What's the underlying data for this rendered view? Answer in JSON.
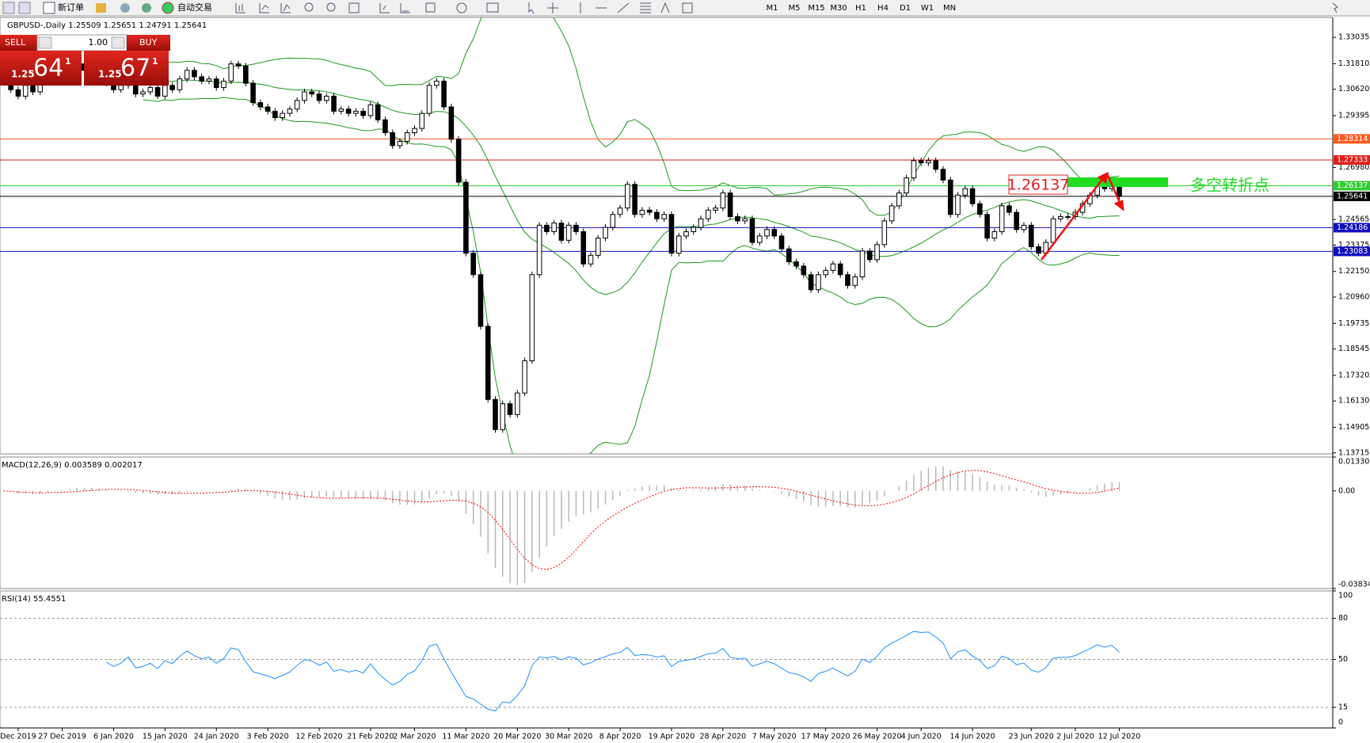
{
  "toolbar": {
    "new_order": "新订单",
    "auto_trading": "自动交易",
    "timeframes": [
      "M1",
      "M5",
      "M15",
      "M30",
      "H1",
      "H4",
      "D1",
      "W1",
      "MN"
    ]
  },
  "trade_panel": {
    "sell": "SELL",
    "buy": "BUY",
    "lots": "1.00",
    "sell_price": {
      "big": "1.25",
      "pips": "64",
      "fraction": "1"
    },
    "buy_price": {
      "big": "1.25",
      "pips": "67",
      "fraction": "1"
    }
  },
  "chart_data": {
    "type": "candlestick",
    "title": "GBPUSD-,Daily 1.25509 1.25651 1.24791 1.25641",
    "categories": [
      null,
      null,
      "Dec 2019",
      null,
      null,
      null,
      null,
      null,
      "27 Dec 2019",
      null,
      null,
      null,
      null,
      null,
      null,
      "6 Jan 2020",
      null,
      null,
      null,
      null,
      null,
      null,
      "15 Jan 2020",
      null,
      null,
      null,
      null,
      null,
      null,
      "24 Jan 2020",
      null,
      null,
      null,
      null,
      null,
      null,
      "3 Feb 2020",
      null,
      null,
      null,
      null,
      null,
      null,
      "12 Feb 2020",
      null,
      null,
      null,
      null,
      null,
      null,
      "21 Feb 2020",
      null,
      null,
      null,
      null,
      null,
      "2 Mar 2020",
      null,
      null,
      null,
      null,
      null,
      null,
      "11 Mar 2020",
      null,
      null,
      null,
      null,
      null,
      null,
      "20 Mar 2020",
      null,
      null,
      null,
      null,
      null,
      null,
      "30 Mar 2020",
      null,
      null,
      null,
      null,
      null,
      null,
      "8 Apr 2020",
      null,
      null,
      null,
      null,
      null,
      null,
      "19 Apr 2020",
      null,
      null,
      null,
      null,
      null,
      null,
      "28 Apr 2020",
      null,
      null,
      null,
      null,
      null,
      null,
      "7 May 2020",
      null,
      null,
      null,
      null,
      null,
      null,
      "17 May 2020",
      null,
      null,
      null,
      null,
      null,
      null,
      "26 May 2020",
      null,
      null,
      null,
      null,
      null,
      "4 Jun 2020",
      null,
      null,
      null,
      null,
      null,
      null,
      "14 Jun 2020",
      null,
      null,
      null,
      null,
      null,
      null,
      null,
      "23 Jun 2020",
      null,
      null,
      null,
      null,
      null,
      "2 Jul 2020",
      null,
      null,
      null,
      null,
      null,
      "12 Jul 2020"
    ],
    "close": [
      1.311,
      1.306,
      1.303,
      1.308,
      1.305,
      1.31,
      1.314,
      1.317,
      1.312,
      1.316,
      1.318,
      1.315,
      1.313,
      1.31,
      1.309,
      1.306,
      1.308,
      1.312,
      1.304,
      1.305,
      1.307,
      1.303,
      1.308,
      1.306,
      1.311,
      1.315,
      1.312,
      1.31,
      1.311,
      1.307,
      1.31,
      1.318,
      1.317,
      1.309,
      1.3,
      1.298,
      1.296,
      1.293,
      1.295,
      1.297,
      1.301,
      1.305,
      1.304,
      1.301,
      1.303,
      1.296,
      1.297,
      1.295,
      1.296,
      1.294,
      1.299,
      1.292,
      1.286,
      1.28,
      1.282,
      1.286,
      1.288,
      1.295,
      1.308,
      1.31,
      1.298,
      1.283,
      1.263,
      1.23,
      1.22,
      1.196,
      1.162,
      1.148,
      1.16,
      1.155,
      1.165,
      1.18,
      1.22,
      1.243,
      1.24,
      1.244,
      1.236,
      1.243,
      1.24,
      1.225,
      1.229,
      1.237,
      1.242,
      1.248,
      1.251,
      1.262,
      1.248,
      1.25,
      1.249,
      1.246,
      1.248,
      1.23,
      1.238,
      1.24,
      1.242,
      1.246,
      1.25,
      1.251,
      1.258,
      1.247,
      1.245,
      1.246,
      1.235,
      1.238,
      1.241,
      1.238,
      1.232,
      1.226,
      1.224,
      1.22,
      1.213,
      1.22,
      1.222,
      1.225,
      1.22,
      1.215,
      1.219,
      1.231,
      1.227,
      1.234,
      1.245,
      1.252,
      1.258,
      1.265,
      1.273,
      1.272,
      1.273,
      1.269,
      1.264,
      1.248,
      1.257,
      1.26,
      1.253,
      1.248,
      1.237,
      1.24,
      1.252,
      1.249,
      1.241,
      1.243,
      1.233,
      1.23,
      1.235,
      1.246,
      1.247,
      1.247,
      1.249,
      1.253,
      1.257,
      1.262,
      1.26,
      1.262,
      1.2564
    ],
    "ylim": [
      1.1367,
      1.3396
    ],
    "yticks": [
      1.33035,
      {
        "value": 1.3181,
        "label": "1.31810"
      },
      {
        "value": 1.3062,
        "label": "1.30620"
      },
      1.29395,
      {
        "value": 1.2698,
        "label": "1.26980"
      },
      1.24565,
      1.23375,
      {
        "value": 1.2215,
        "label": "1.22150"
      },
      {
        "value": 1.2096,
        "label": "1.20960"
      },
      1.19735,
      1.18545,
      {
        "value": 1.1732,
        "label": "1.17320"
      },
      {
        "value": 1.1613,
        "label": "1.16130"
      },
      1.14905,
      1.13715
    ],
    "up_color": "#ffffff",
    "down_color": "#000000",
    "band_color": "#1a9a1a",
    "levels": [
      {
        "value": 1.28314,
        "color": "#ff5a1f"
      },
      {
        "value": 1.27333,
        "color": "#e0201a"
      },
      {
        "value": 1.26137,
        "color": "#33cc33"
      },
      {
        "value": 1.25641,
        "color": "#000000"
      },
      {
        "value": 1.24186,
        "color": "#1010c0"
      },
      {
        "value": 1.23083,
        "color": "#1010c0"
      }
    ],
    "annotation": {
      "price": "1.26137",
      "text": "多空转折点",
      "color": "#22dd22"
    },
    "macd": {
      "title": "MACD(12,26,9) 0.003589 0.002017",
      "ylim": [
        -0.038343,
        0.013301
      ],
      "yticks": [
        0.013301,
        {
          "value": 0,
          "label": "0.00"
        },
        -0.038343
      ],
      "color": "#b8b8b8",
      "signal_color": "#ff0000"
    },
    "rsi": {
      "title": "RSI(14) 55.4551",
      "ylim": [
        0,
        100
      ],
      "yticks": [
        100,
        80,
        50,
        15,
        0
      ],
      "color": "#1e90ff"
    }
  }
}
